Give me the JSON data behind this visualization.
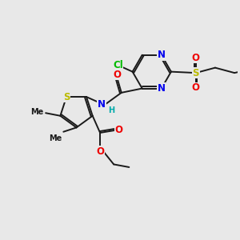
{
  "bg_color": "#e8e8e8",
  "bond_color": "#1a1a1a",
  "bond_width": 1.4,
  "dbl_sep": 0.07,
  "atom_colors": {
    "Cl": "#00bb00",
    "N": "#0000ee",
    "O": "#ee0000",
    "S": "#bbbb00",
    "H": "#00aaaa",
    "C": "#1a1a1a"
  },
  "afs": 8.5,
  "sfs": 7.0,
  "figsize": [
    3.0,
    3.0
  ],
  "dpi": 100,
  "xlim": [
    0,
    10
  ],
  "ylim": [
    0,
    10
  ]
}
